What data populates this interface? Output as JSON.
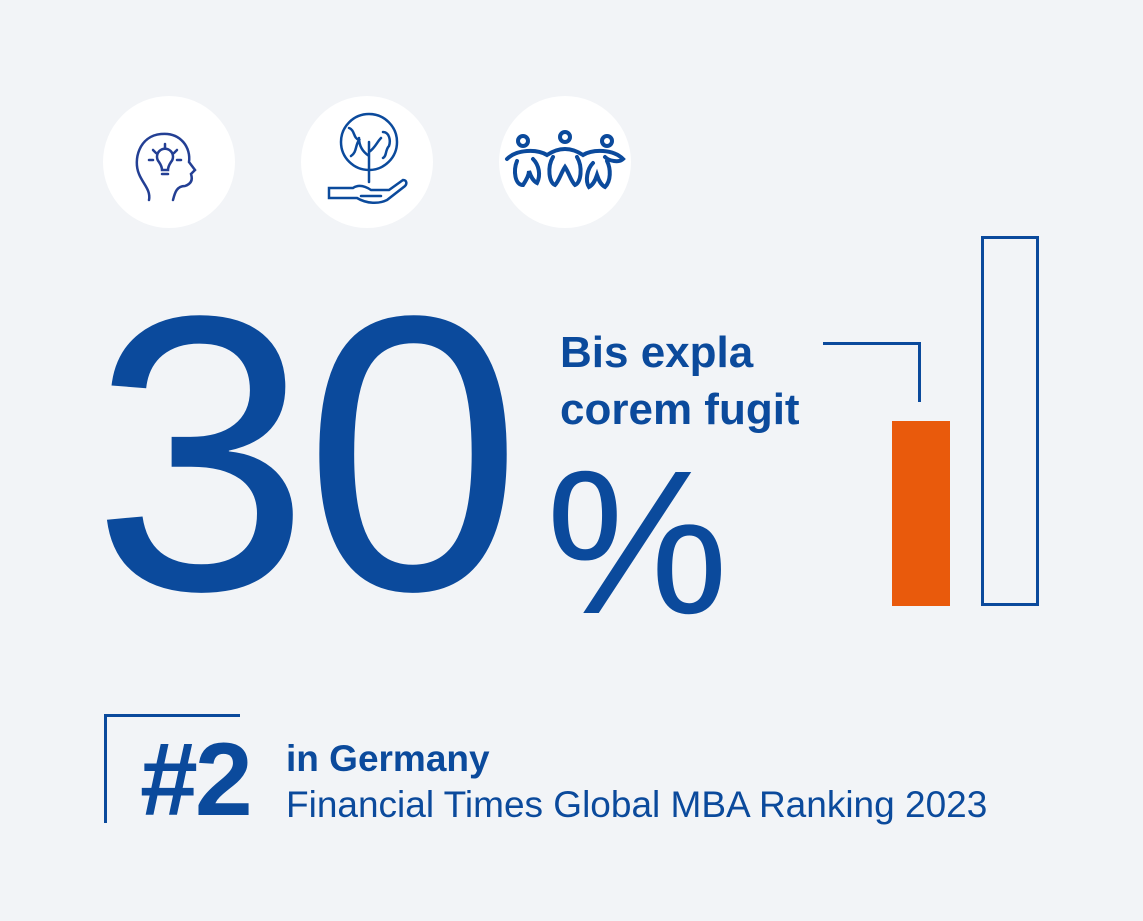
{
  "icons": [
    "head-lightbulb-icon",
    "globe-plant-hand-icon",
    "people-group-icon"
  ],
  "stat": {
    "value": "30",
    "unit": "%",
    "label_line1": "Bis expla",
    "label_line2": "corem fugit"
  },
  "bar_graphic": {
    "highlight_fraction": 0.5,
    "highlight_color": "#e95a0c",
    "outline_color": "#0b4a9c"
  },
  "ranking": {
    "rank": "#2",
    "line1": "in Germany",
    "line2": "Financial Times Global MBA Ranking 2023"
  },
  "colors": {
    "primary": "#0b4a9c",
    "accent": "#e95a0c",
    "background": "#f2f4f7"
  }
}
